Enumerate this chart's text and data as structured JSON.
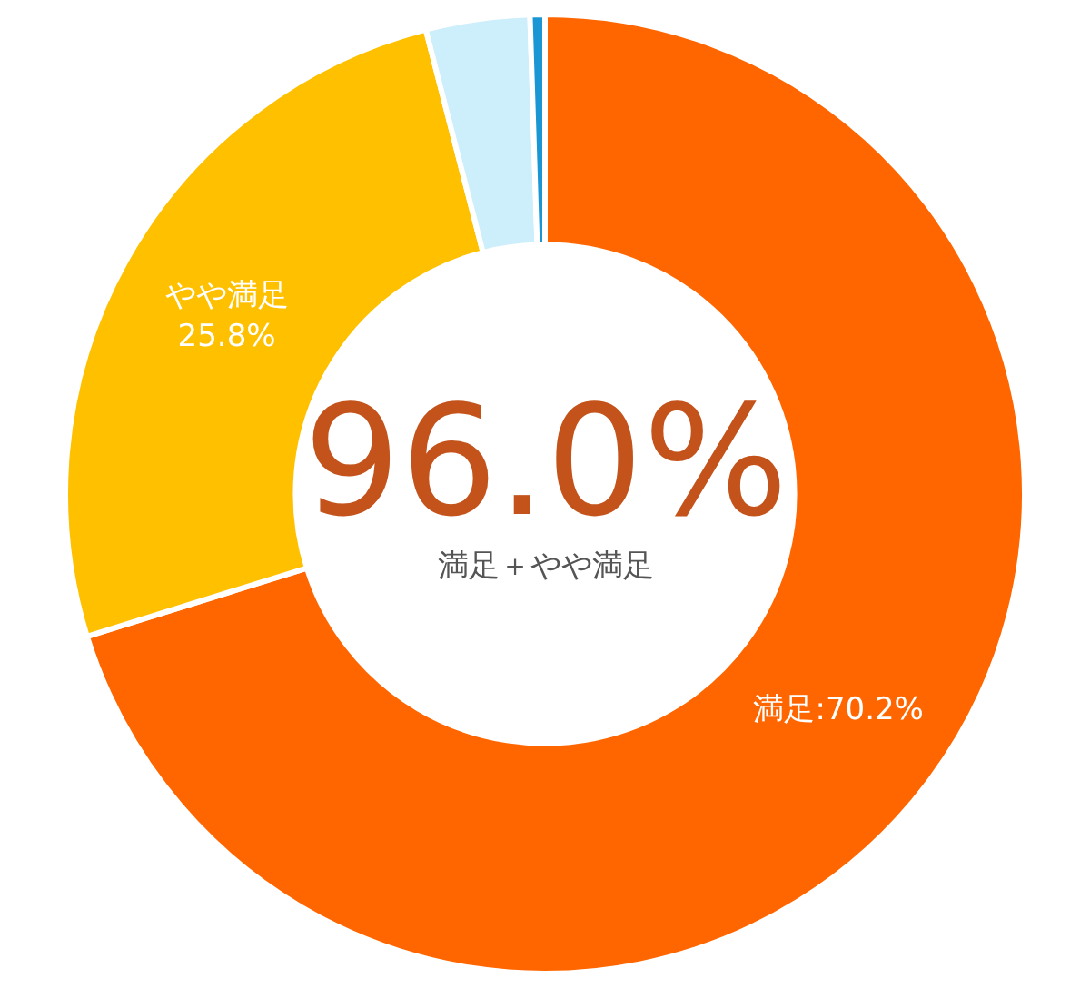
{
  "chart_data": {
    "type": "donut",
    "categories": [
      "満足",
      "やや満足",
      null,
      null
    ],
    "values": [
      70.2,
      25.8,
      3.5,
      0.5
    ],
    "colors": [
      "#ff6600",
      "#ffc000",
      "#cdeefb",
      "#1a96d4"
    ],
    "value_labels": [
      "70.2%",
      "25.8%",
      null,
      null
    ],
    "annotations": [
      "96.0%",
      "満足＋やや満足"
    ]
  }
}
